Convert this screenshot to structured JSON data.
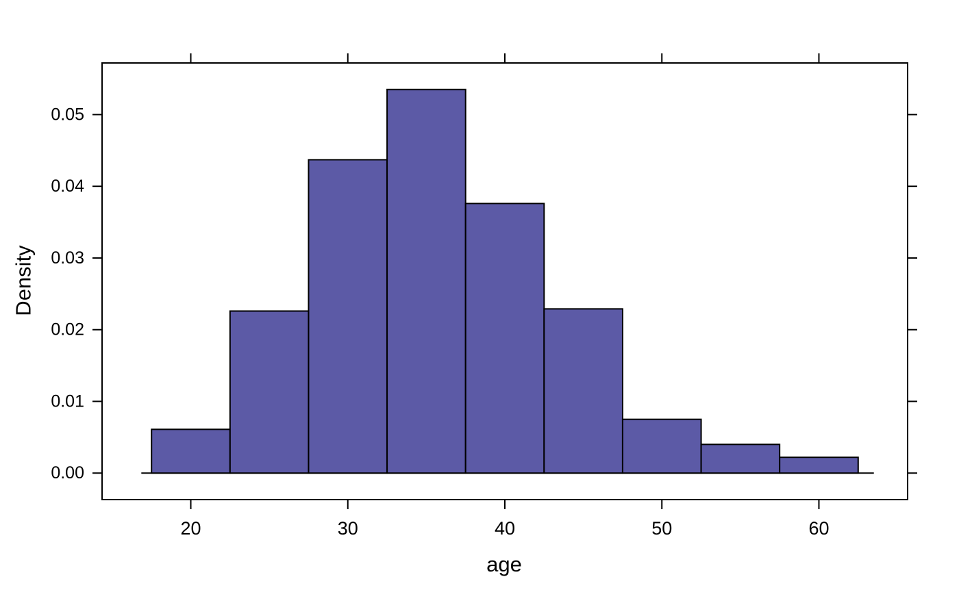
{
  "figure": {
    "background": "#ffffff",
    "xlabel": "age",
    "ylabel": "Density"
  },
  "chart_data": {
    "type": "bar",
    "subtype": "histogram",
    "title": "",
    "xlabel": "age",
    "ylabel": "Density",
    "bin_edges": [
      17.5,
      22.5,
      27.5,
      32.5,
      37.5,
      42.5,
      47.5,
      52.5,
      57.5,
      62.5
    ],
    "densities": [
      0.0061,
      0.0226,
      0.0437,
      0.0535,
      0.0376,
      0.0229,
      0.0075,
      0.004,
      0.0022
    ],
    "x_ticks": [
      20,
      30,
      40,
      50,
      60
    ],
    "x_tick_labels": [
      "20",
      "30",
      "40",
      "50",
      "60"
    ],
    "y_ticks": [
      0.0,
      0.01,
      0.02,
      0.03,
      0.04,
      0.05
    ],
    "y_tick_labels": [
      "0.00",
      "0.01",
      "0.02",
      "0.03",
      "0.04",
      "0.05"
    ],
    "xlim": [
      14.35,
      65.65
    ],
    "ylim": [
      -0.0037,
      0.0572
    ],
    "baseline_extent": [
      16.85,
      63.5
    ],
    "grid": false,
    "legend": null,
    "tick_style": "outward, mirrored on all four sides",
    "colors": {
      "bar_fill": "#5C5AA6",
      "bar_border": "#000000",
      "frame": "#000000",
      "text": "#000000"
    }
  }
}
